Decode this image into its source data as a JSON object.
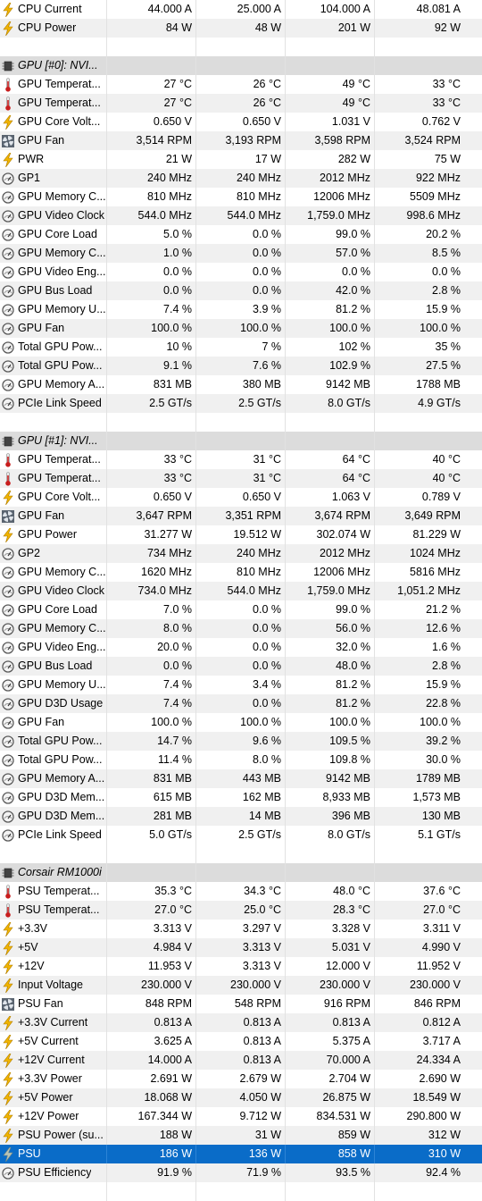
{
  "rows": [
    {
      "type": "sensor",
      "icon": "bolt",
      "label": "CPU Current",
      "v": [
        "44.000 A",
        "25.000 A",
        "104.000 A",
        "48.081 A"
      ]
    },
    {
      "type": "sensor",
      "icon": "bolt",
      "label": "CPU Power",
      "v": [
        "84 W",
        "48 W",
        "201 W",
        "92 W"
      ]
    },
    {
      "type": "spacer"
    },
    {
      "type": "header",
      "icon": "chip",
      "label": "GPU [#0]: NVI..."
    },
    {
      "type": "sensor",
      "icon": "thermometer",
      "label": "GPU Temperat...",
      "v": [
        "27 °C",
        "26 °C",
        "49 °C",
        "33 °C"
      ]
    },
    {
      "type": "sensor",
      "icon": "thermometer",
      "label": "GPU Temperat...",
      "v": [
        "27 °C",
        "26 °C",
        "49 °C",
        "33 °C"
      ]
    },
    {
      "type": "sensor",
      "icon": "bolt",
      "label": "GPU Core Volt...",
      "v": [
        "0.650 V",
        "0.650 V",
        "1.031 V",
        "0.762 V"
      ]
    },
    {
      "type": "sensor",
      "icon": "fan",
      "label": "GPU Fan",
      "v": [
        "3,514 RPM",
        "3,193 RPM",
        "3,598 RPM",
        "3,524 RPM"
      ]
    },
    {
      "type": "sensor",
      "icon": "bolt",
      "label": "PWR",
      "v": [
        "21 W",
        "17 W",
        "282 W",
        "75 W"
      ]
    },
    {
      "type": "sensor",
      "icon": "gauge",
      "label": "GP1",
      "v": [
        "240 MHz",
        "240 MHz",
        "2012 MHz",
        "922 MHz"
      ]
    },
    {
      "type": "sensor",
      "icon": "gauge",
      "label": "GPU Memory C...",
      "v": [
        "810 MHz",
        "810 MHz",
        "12006 MHz",
        "5509 MHz"
      ]
    },
    {
      "type": "sensor",
      "icon": "gauge",
      "label": "GPU Video Clock",
      "v": [
        "544.0 MHz",
        "544.0 MHz",
        "1,759.0 MHz",
        "998.6 MHz"
      ]
    },
    {
      "type": "sensor",
      "icon": "gauge",
      "label": "GPU Core Load",
      "v": [
        "5.0 %",
        "0.0 %",
        "99.0 %",
        "20.2 %"
      ]
    },
    {
      "type": "sensor",
      "icon": "gauge",
      "label": "GPU Memory C...",
      "v": [
        "1.0 %",
        "0.0 %",
        "57.0 %",
        "8.5 %"
      ]
    },
    {
      "type": "sensor",
      "icon": "gauge",
      "label": "GPU Video Eng...",
      "v": [
        "0.0 %",
        "0.0 %",
        "0.0 %",
        "0.0 %"
      ]
    },
    {
      "type": "sensor",
      "icon": "gauge",
      "label": "GPU Bus Load",
      "v": [
        "0.0 %",
        "0.0 %",
        "42.0 %",
        "2.8 %"
      ]
    },
    {
      "type": "sensor",
      "icon": "gauge",
      "label": "GPU Memory U...",
      "v": [
        "7.4 %",
        "3.9 %",
        "81.2 %",
        "15.9 %"
      ]
    },
    {
      "type": "sensor",
      "icon": "gauge",
      "label": "GPU Fan",
      "v": [
        "100.0 %",
        "100.0 %",
        "100.0 %",
        "100.0 %"
      ]
    },
    {
      "type": "sensor",
      "icon": "gauge",
      "label": "Total GPU Pow...",
      "v": [
        "10 %",
        "7 %",
        "102 %",
        "35 %"
      ]
    },
    {
      "type": "sensor",
      "icon": "gauge",
      "label": "Total GPU Pow...",
      "v": [
        "9.1 %",
        "7.6 %",
        "102.9 %",
        "27.5 %"
      ]
    },
    {
      "type": "sensor",
      "icon": "gauge",
      "label": "GPU Memory A...",
      "v": [
        "831 MB",
        "380 MB",
        "9142 MB",
        "1788 MB"
      ]
    },
    {
      "type": "sensor",
      "icon": "gauge",
      "label": "PCIe Link Speed",
      "v": [
        "2.5 GT/s",
        "2.5 GT/s",
        "8.0 GT/s",
        "4.9 GT/s"
      ]
    },
    {
      "type": "spacer"
    },
    {
      "type": "header",
      "icon": "chip",
      "label": "GPU [#1]: NVI..."
    },
    {
      "type": "sensor",
      "icon": "thermometer",
      "label": "GPU Temperat...",
      "v": [
        "33 °C",
        "31 °C",
        "64 °C",
        "40 °C"
      ]
    },
    {
      "type": "sensor",
      "icon": "thermometer",
      "label": "GPU Temperat...",
      "v": [
        "33 °C",
        "31 °C",
        "64 °C",
        "40 °C"
      ]
    },
    {
      "type": "sensor",
      "icon": "bolt",
      "label": "GPU Core Volt...",
      "v": [
        "0.650 V",
        "0.650 V",
        "1.063 V",
        "0.789 V"
      ]
    },
    {
      "type": "sensor",
      "icon": "fan",
      "label": "GPU Fan",
      "v": [
        "3,647 RPM",
        "3,351 RPM",
        "3,674 RPM",
        "3,649 RPM"
      ]
    },
    {
      "type": "sensor",
      "icon": "bolt",
      "label": "GPU Power",
      "v": [
        "31.277 W",
        "19.512 W",
        "302.074 W",
        "81.229 W"
      ]
    },
    {
      "type": "sensor",
      "icon": "gauge",
      "label": "GP2",
      "v": [
        "734 MHz",
        "240 MHz",
        "2012 MHz",
        "1024 MHz"
      ]
    },
    {
      "type": "sensor",
      "icon": "gauge",
      "label": "GPU Memory C...",
      "v": [
        "1620 MHz",
        "810 MHz",
        "12006 MHz",
        "5816 MHz"
      ]
    },
    {
      "type": "sensor",
      "icon": "gauge",
      "label": "GPU Video Clock",
      "v": [
        "734.0 MHz",
        "544.0 MHz",
        "1,759.0 MHz",
        "1,051.2 MHz"
      ]
    },
    {
      "type": "sensor",
      "icon": "gauge",
      "label": "GPU Core Load",
      "v": [
        "7.0 %",
        "0.0 %",
        "99.0 %",
        "21.2 %"
      ]
    },
    {
      "type": "sensor",
      "icon": "gauge",
      "label": "GPU Memory C...",
      "v": [
        "8.0 %",
        "0.0 %",
        "56.0 %",
        "12.6 %"
      ]
    },
    {
      "type": "sensor",
      "icon": "gauge",
      "label": "GPU Video Eng...",
      "v": [
        "20.0 %",
        "0.0 %",
        "32.0 %",
        "1.6 %"
      ]
    },
    {
      "type": "sensor",
      "icon": "gauge",
      "label": "GPU Bus Load",
      "v": [
        "0.0 %",
        "0.0 %",
        "48.0 %",
        "2.8 %"
      ]
    },
    {
      "type": "sensor",
      "icon": "gauge",
      "label": "GPU Memory U...",
      "v": [
        "7.4 %",
        "3.4 %",
        "81.2 %",
        "15.9 %"
      ]
    },
    {
      "type": "sensor",
      "icon": "gauge",
      "label": "GPU D3D Usage",
      "v": [
        "7.4 %",
        "0.0 %",
        "81.2 %",
        "22.8 %"
      ]
    },
    {
      "type": "sensor",
      "icon": "gauge",
      "label": "GPU Fan",
      "v": [
        "100.0 %",
        "100.0 %",
        "100.0 %",
        "100.0 %"
      ]
    },
    {
      "type": "sensor",
      "icon": "gauge",
      "label": "Total GPU Pow...",
      "v": [
        "14.7 %",
        "9.6 %",
        "109.5 %",
        "39.2 %"
      ]
    },
    {
      "type": "sensor",
      "icon": "gauge",
      "label": "Total GPU Pow...",
      "v": [
        "11.4 %",
        "8.0 %",
        "109.8 %",
        "30.0 %"
      ]
    },
    {
      "type": "sensor",
      "icon": "gauge",
      "label": "GPU Memory A...",
      "v": [
        "831 MB",
        "443 MB",
        "9142 MB",
        "1789 MB"
      ]
    },
    {
      "type": "sensor",
      "icon": "gauge",
      "label": "GPU D3D Mem...",
      "v": [
        "615 MB",
        "162 MB",
        "8,933 MB",
        "1,573 MB"
      ]
    },
    {
      "type": "sensor",
      "icon": "gauge",
      "label": "GPU D3D Mem...",
      "v": [
        "281 MB",
        "14 MB",
        "396 MB",
        "130 MB"
      ]
    },
    {
      "type": "sensor",
      "icon": "gauge",
      "label": "PCIe Link Speed",
      "v": [
        "5.0 GT/s",
        "2.5 GT/s",
        "8.0 GT/s",
        "5.1 GT/s"
      ]
    },
    {
      "type": "spacer"
    },
    {
      "type": "header",
      "icon": "chip",
      "label": "Corsair RM1000i"
    },
    {
      "type": "sensor",
      "icon": "thermometer",
      "label": "PSU Temperat...",
      "v": [
        "35.3 °C",
        "34.3 °C",
        "48.0 °C",
        "37.6 °C"
      ]
    },
    {
      "type": "sensor",
      "icon": "thermometer",
      "label": "PSU Temperat...",
      "v": [
        "27.0 °C",
        "25.0 °C",
        "28.3 °C",
        "27.0 °C"
      ]
    },
    {
      "type": "sensor",
      "icon": "bolt",
      "label": "+3.3V",
      "v": [
        "3.313 V",
        "3.297 V",
        "3.328 V",
        "3.311 V"
      ]
    },
    {
      "type": "sensor",
      "icon": "bolt",
      "label": "+5V",
      "v": [
        "4.984 V",
        "3.313 V",
        "5.031 V",
        "4.990 V"
      ]
    },
    {
      "type": "sensor",
      "icon": "bolt",
      "label": "+12V",
      "v": [
        "11.953 V",
        "3.313 V",
        "12.000 V",
        "11.952 V"
      ]
    },
    {
      "type": "sensor",
      "icon": "bolt",
      "label": "Input Voltage",
      "v": [
        "230.000 V",
        "230.000 V",
        "230.000 V",
        "230.000 V"
      ]
    },
    {
      "type": "sensor",
      "icon": "fan",
      "label": "PSU Fan",
      "v": [
        "848 RPM",
        "548 RPM",
        "916 RPM",
        "846 RPM"
      ]
    },
    {
      "type": "sensor",
      "icon": "bolt",
      "label": "+3.3V Current",
      "v": [
        "0.813 A",
        "0.813 A",
        "0.813 A",
        "0.812 A"
      ]
    },
    {
      "type": "sensor",
      "icon": "bolt",
      "label": "+5V Current",
      "v": [
        "3.625 A",
        "0.813 A",
        "5.375 A",
        "3.717 A"
      ]
    },
    {
      "type": "sensor",
      "icon": "bolt",
      "label": "+12V Current",
      "v": [
        "14.000 A",
        "0.813 A",
        "70.000 A",
        "24.334 A"
      ]
    },
    {
      "type": "sensor",
      "icon": "bolt",
      "label": "+3.3V Power",
      "v": [
        "2.691 W",
        "2.679 W",
        "2.704 W",
        "2.690 W"
      ]
    },
    {
      "type": "sensor",
      "icon": "bolt",
      "label": "+5V Power",
      "v": [
        "18.068 W",
        "4.050 W",
        "26.875 W",
        "18.549 W"
      ]
    },
    {
      "type": "sensor",
      "icon": "bolt",
      "label": "+12V Power",
      "v": [
        "167.344 W",
        "9.712 W",
        "834.531 W",
        "290.800 W"
      ]
    },
    {
      "type": "sensor",
      "icon": "bolt",
      "label": "PSU Power (su...",
      "v": [
        "188 W",
        "31 W",
        "859 W",
        "312 W"
      ]
    },
    {
      "type": "sensor",
      "icon": "bolt-gray",
      "label": "PSU",
      "v": [
        "186 W",
        "136 W",
        "858 W",
        "310 W"
      ],
      "selected": true
    },
    {
      "type": "sensor",
      "icon": "gauge",
      "label": "PSU Efficiency",
      "v": [
        "91.9 %",
        "71.9 %",
        "93.5 %",
        "92.4 %"
      ]
    },
    {
      "type": "spacer"
    }
  ],
  "colors": {
    "selection": "#0a6cc8",
    "alt_row": "#f0f0f0",
    "header_row": "#dcdcdc",
    "bolt": "#f0b400",
    "thermometer": "#c81e1e"
  }
}
